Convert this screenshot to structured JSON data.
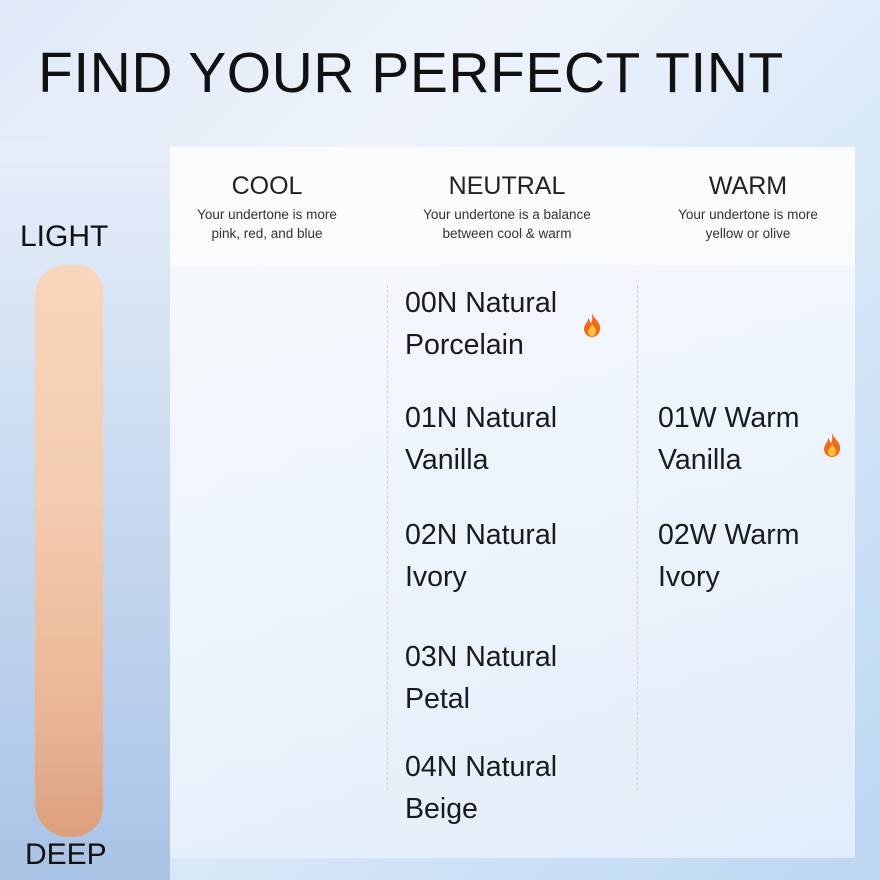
{
  "title": "FIND YOUR PERFECT TINT",
  "scale": {
    "top": "LIGHT",
    "bottom": "DEEP",
    "colors": [
      "#f8d6bc",
      "#dc9f7d"
    ]
  },
  "columns": [
    {
      "name": "COOL",
      "line1": "Your undertone is more",
      "line2": "pink, red, and blue"
    },
    {
      "name": "NEUTRAL",
      "line1": "Your undertone is a balance",
      "line2": "between cool & warm"
    },
    {
      "name": "WARM",
      "line1": "Your undertone is more",
      "line2": "yellow or olive"
    }
  ],
  "neutral_shades": [
    {
      "l1": "00N Natural",
      "l2": "Porcelain",
      "hot": true
    },
    {
      "l1": "01N Natural",
      "l2": "Vanilla",
      "hot": false
    },
    {
      "l1": "02N Natural",
      "l2": "Ivory",
      "hot": false
    },
    {
      "l1": "03N Natural",
      "l2": "Petal",
      "hot": false
    },
    {
      "l1": "04N Natural",
      "l2": "Beige",
      "hot": false
    }
  ],
  "warm_shades": [
    {
      "l1": "01W Warm",
      "l2": "Vanilla",
      "hot": true
    },
    {
      "l1": "02W Warm",
      "l2": "Ivory",
      "hot": false
    }
  ],
  "icons": {
    "bestseller": "fire-icon"
  }
}
